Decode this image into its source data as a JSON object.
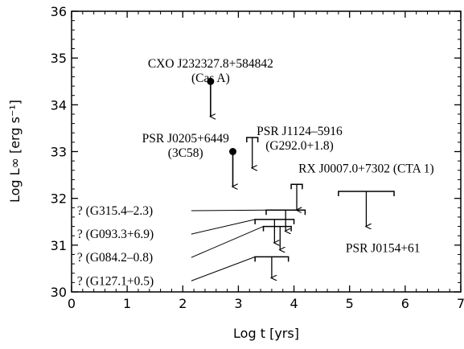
{
  "chart_data": {
    "type": "scatter",
    "xlabel": "Log t [yrs]",
    "ylabel": "Log L∞ [erg s⁻¹]",
    "xlim": [
      0,
      7
    ],
    "ylim": [
      30,
      36
    ],
    "x_ticks": [
      "0",
      "1",
      "2",
      "3",
      "4",
      "5",
      "6",
      "7"
    ],
    "y_ticks": [
      "30",
      "31",
      "32",
      "33",
      "34",
      "35",
      "36"
    ],
    "detections": [
      {
        "x": 2.5,
        "y": 34.5,
        "arrow_to": 33.75
      },
      {
        "x": 2.9,
        "y": 33.0,
        "arrow_to": 32.25
      }
    ],
    "limits": [
      {
        "x1": 3.15,
        "x2": 3.35,
        "y": 33.3,
        "arrow_x": 3.25,
        "arrow_to": 32.65
      },
      {
        "x1": 3.95,
        "x2": 4.15,
        "y": 32.3,
        "arrow_x": 4.05,
        "arrow_to": 31.75
      },
      {
        "x1": 4.8,
        "x2": 5.8,
        "y": 32.15,
        "arrow_x": 5.3,
        "arrow_to": 31.4
      },
      {
        "x1": 3.5,
        "x2": 4.2,
        "y": 31.75,
        "arrow_x": 3.85,
        "arrow_to": 31.3
      },
      {
        "x1": 3.3,
        "x2": 4.0,
        "y": 31.55,
        "arrow_x": 3.65,
        "arrow_to": 31.05
      },
      {
        "x1": 3.45,
        "x2": 3.95,
        "y": 31.4,
        "arrow_x": 3.75,
        "arrow_to": 30.9
      },
      {
        "x1": 3.3,
        "x2": 3.9,
        "y": 30.75,
        "arrow_x": 3.6,
        "arrow_to": 30.3
      }
    ],
    "annotations": [
      {
        "lines": [
          "CXO J232327.8+584842",
          "(Cas A)"
        ],
        "x": 2.5,
        "y": 34.8,
        "anchor": "middle"
      },
      {
        "lines": [
          "PSR J0205+6449",
          "(3C58)"
        ],
        "x": 2.05,
        "y": 33.2,
        "anchor": "middle"
      },
      {
        "lines": [
          "PSR J1124–5916",
          "(G292.0+1.8)"
        ],
        "x": 4.1,
        "y": 33.35,
        "anchor": "middle"
      },
      {
        "lines": [
          "RX J0007.0+7302 (CTA 1)"
        ],
        "x": 5.3,
        "y": 32.55,
        "anchor": "middle"
      },
      {
        "lines": [
          "PSR J0154+61"
        ],
        "x": 5.6,
        "y": 30.85,
        "anchor": "middle"
      },
      {
        "lines": [
          "? (G315.4–2.3)"
        ],
        "x": 0.1,
        "y": 31.65,
        "anchor": "start",
        "connector": {
          "x": 3.5,
          "y": 31.75
        }
      },
      {
        "lines": [
          "? (G093.3+6.9)"
        ],
        "x": 0.1,
        "y": 31.15,
        "anchor": "start",
        "connector": {
          "x": 3.3,
          "y": 31.55
        }
      },
      {
        "lines": [
          "? (G084.2–0.8)"
        ],
        "x": 0.1,
        "y": 30.65,
        "anchor": "start",
        "connector": {
          "x": 3.45,
          "y": 31.4
        }
      },
      {
        "lines": [
          "? (G127.1+0.5)"
        ],
        "x": 0.1,
        "y": 30.15,
        "anchor": "start",
        "connector": {
          "x": 3.3,
          "y": 30.75
        }
      }
    ]
  }
}
